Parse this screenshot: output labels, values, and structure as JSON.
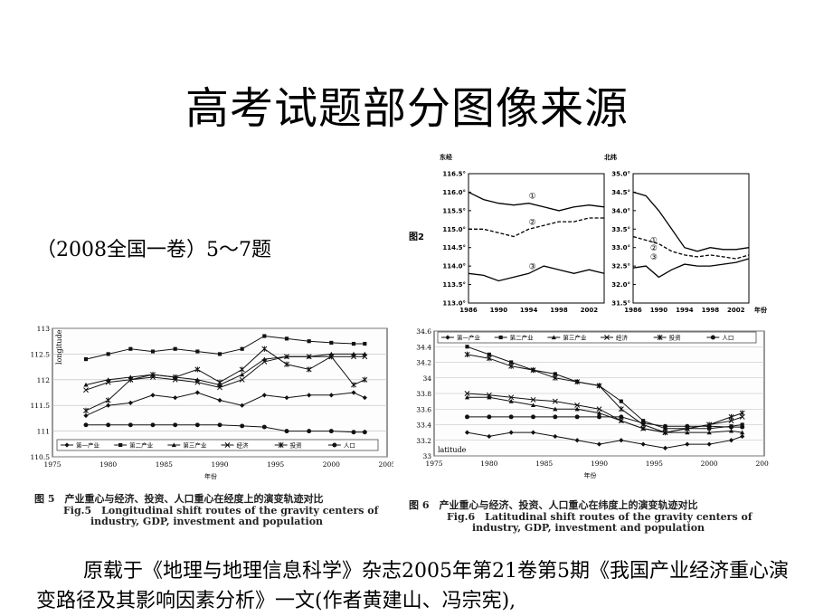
{
  "title": "高考试题部分图像来源",
  "subtitle": "（2008全国一卷）5～7题",
  "source": "原载于《地理与地理信息科学》杂志2005年第21卷第5期《我国产业经济重心演变路径及其影响因素分析》一文(作者黄建山、冯宗宪),",
  "fig2": {
    "label": "图2",
    "left": {
      "ylabel": "东经",
      "yticks": [
        "116.5°",
        "116.0°",
        "115.5°",
        "115.0°",
        "114.5°",
        "114.0°",
        "113.5°",
        "113.0°"
      ],
      "xticks": [
        "1986",
        "1990",
        "1994",
        "1998",
        "2002"
      ],
      "markers": [
        "①",
        "②",
        "③"
      ]
    },
    "right": {
      "ylabel": "北纬",
      "yticks": [
        "35.0°",
        "34.5°",
        "34.0°",
        "33.5°",
        "33.0°",
        "32.5°",
        "32.0°",
        "31.5°"
      ],
      "xticks": [
        "1986",
        "1990",
        "1994",
        "1998",
        "2002"
      ],
      "xunit": "年份",
      "markers": [
        "①",
        "②",
        "③"
      ]
    }
  },
  "fig5": {
    "yaxis_label": "longitude",
    "yticks": [
      "113",
      "112.5",
      "112",
      "111.5",
      "111",
      "110.5"
    ],
    "xticks": [
      "1975",
      "1980",
      "1985",
      "1990",
      "1995",
      "2000",
      "2005"
    ],
    "xunit": "年份",
    "legend": [
      "第一产业",
      "第二产业",
      "第三产业",
      "经济",
      "投资",
      "人口"
    ],
    "caption_zh": "图 5　产业重心与经济、投资、人口重心在经度上的演变轨迹对比",
    "caption_en1": "Fig.5　Longitudinal shift routes of the gravity centers of",
    "caption_en2": "industry, GDP, investment and population"
  },
  "fig6": {
    "yaxis_label": "latitude",
    "yticks": [
      "34.6",
      "34.4",
      "34.2",
      "34",
      "33.8",
      "33.6",
      "33.4",
      "33.2",
      "33"
    ],
    "xticks": [
      "1975",
      "1980",
      "1985",
      "1990",
      "1995",
      "2000",
      "2005"
    ],
    "xunit": "年份",
    "legend": [
      "第一产业",
      "第二产业",
      "第三产业",
      "经济",
      "投资",
      "人口"
    ],
    "caption_zh": "图 6　产业重心与经济、投资、人口重心在纬度上的演变轨迹对比",
    "caption_en1": "Fig.6　Latitudinal shift routes of the gravity centers of",
    "caption_en2": "industry, GDP, investment and population"
  },
  "chart_data": [
    {
      "type": "line",
      "title": "",
      "ylabel": "东经",
      "x": [
        1986,
        1988,
        1990,
        1992,
        1994,
        1996,
        1998,
        2000,
        2002,
        2004
      ],
      "ylim": [
        113.0,
        116.5
      ],
      "series": [
        {
          "name": "①",
          "values": [
            116.0,
            115.8,
            115.7,
            115.65,
            115.7,
            115.6,
            115.5,
            115.6,
            115.65,
            115.6
          ],
          "style": "solid"
        },
        {
          "name": "②",
          "values": [
            115.0,
            115.0,
            114.9,
            114.8,
            115.0,
            115.1,
            115.2,
            115.2,
            115.3,
            115.3
          ],
          "style": "dashed"
        },
        {
          "name": "③",
          "values": [
            113.8,
            113.75,
            113.6,
            113.7,
            113.8,
            114.0,
            113.9,
            113.8,
            113.9,
            113.8
          ],
          "style": "solid"
        }
      ]
    },
    {
      "type": "line",
      "title": "",
      "ylabel": "北纬",
      "x": [
        1986,
        1988,
        1990,
        1992,
        1994,
        1996,
        1998,
        2000,
        2002,
        2004
      ],
      "ylim": [
        31.5,
        35.0
      ],
      "series": [
        {
          "name": "①",
          "values": [
            34.5,
            34.4,
            34.0,
            33.5,
            33.0,
            32.9,
            33.0,
            32.95,
            32.95,
            33.0
          ],
          "style": "solid"
        },
        {
          "name": "②",
          "values": [
            33.3,
            33.2,
            33.1,
            32.9,
            32.8,
            32.75,
            32.8,
            32.75,
            32.7,
            32.8
          ],
          "style": "dashed"
        },
        {
          "name": "③",
          "values": [
            32.45,
            32.5,
            32.2,
            32.4,
            32.55,
            32.5,
            32.5,
            32.55,
            32.6,
            32.7
          ],
          "style": "solid"
        }
      ]
    },
    {
      "type": "line",
      "title": "",
      "ylabel": "longitude",
      "xlabel": "年份",
      "x": [
        1978,
        1980,
        1982,
        1984,
        1986,
        1988,
        1990,
        1992,
        1994,
        1996,
        1998,
        2000,
        2002,
        2003
      ],
      "ylim": [
        110.5,
        113
      ],
      "series": [
        {
          "name": "第一产业",
          "values": [
            111.3,
            111.5,
            111.55,
            111.7,
            111.65,
            111.75,
            111.6,
            111.5,
            111.7,
            111.65,
            111.7,
            111.7,
            111.75,
            111.65
          ]
        },
        {
          "name": "第二产业",
          "values": [
            112.4,
            112.5,
            112.6,
            112.55,
            112.6,
            112.55,
            112.5,
            112.6,
            112.85,
            112.8,
            112.75,
            112.72,
            112.7,
            112.7
          ]
        },
        {
          "name": "第三产业",
          "values": [
            111.9,
            112.0,
            112.05,
            112.1,
            112.05,
            112.0,
            111.9,
            112.1,
            112.4,
            112.45,
            112.45,
            112.5,
            112.5,
            112.5
          ]
        },
        {
          "name": "经济",
          "values": [
            111.8,
            111.95,
            112.0,
            112.05,
            112.0,
            111.95,
            111.85,
            112.0,
            112.35,
            112.45,
            112.45,
            112.45,
            112.45,
            112.45
          ]
        },
        {
          "name": "投资",
          "values": [
            111.4,
            111.6,
            112.0,
            112.1,
            112.05,
            112.2,
            111.95,
            112.2,
            112.6,
            112.3,
            112.2,
            112.45,
            111.9,
            112.0
          ]
        },
        {
          "name": "人口",
          "values": [
            111.12,
            111.12,
            111.12,
            111.12,
            111.12,
            111.12,
            111.12,
            111.1,
            111.08,
            111.0,
            111.0,
            111.0,
            110.98,
            110.98
          ]
        }
      ]
    },
    {
      "type": "line",
      "title": "",
      "ylabel": "latitude",
      "xlabel": "年份",
      "x": [
        1978,
        1980,
        1982,
        1984,
        1986,
        1988,
        1990,
        1992,
        1994,
        1996,
        1998,
        2000,
        2002,
        2003
      ],
      "ylim": [
        33,
        34.6
      ],
      "series": [
        {
          "name": "第一产业",
          "values": [
            33.3,
            33.25,
            33.3,
            33.3,
            33.25,
            33.2,
            33.15,
            33.2,
            33.15,
            33.1,
            33.15,
            33.15,
            33.2,
            33.25
          ]
        },
        {
          "name": "第二产业",
          "values": [
            34.4,
            34.3,
            34.2,
            34.1,
            34.05,
            33.95,
            33.9,
            33.7,
            33.45,
            33.35,
            33.35,
            33.35,
            33.38,
            33.4
          ]
        },
        {
          "name": "第三产业",
          "values": [
            33.75,
            33.75,
            33.7,
            33.65,
            33.6,
            33.6,
            33.55,
            33.45,
            33.35,
            33.3,
            33.3,
            33.3,
            33.32,
            33.3
          ]
        },
        {
          "name": "经济",
          "values": [
            33.8,
            33.78,
            33.75,
            33.72,
            33.7,
            33.65,
            33.6,
            33.45,
            33.35,
            33.3,
            33.35,
            33.4,
            33.45,
            33.5
          ]
        },
        {
          "name": "投资",
          "values": [
            34.3,
            34.25,
            34.15,
            34.1,
            34.0,
            33.95,
            33.9,
            33.6,
            33.4,
            33.3,
            33.35,
            33.4,
            33.5,
            33.55
          ]
        },
        {
          "name": "人口",
          "values": [
            33.5,
            33.5,
            33.5,
            33.5,
            33.5,
            33.5,
            33.5,
            33.5,
            33.42,
            33.38,
            33.38,
            33.38,
            33.37,
            33.37
          ]
        }
      ]
    }
  ]
}
